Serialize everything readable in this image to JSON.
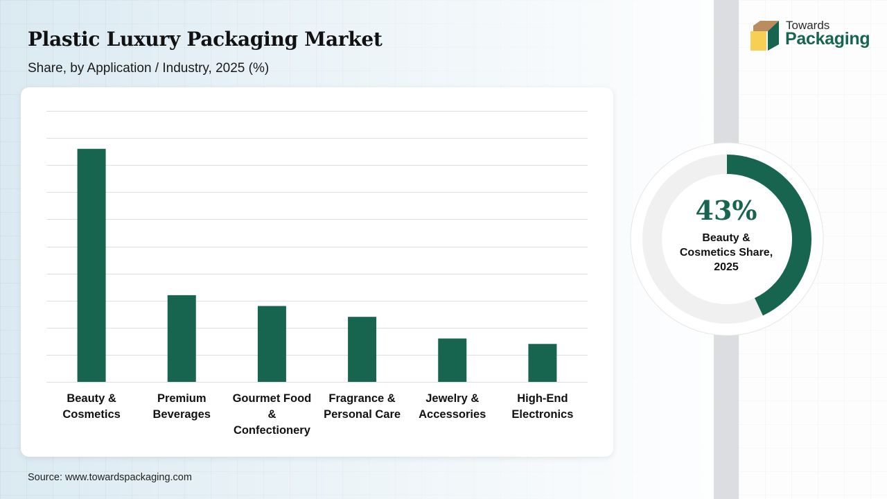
{
  "header": {
    "title": "Plastic Luxury Packaging Market",
    "subtitle": "Share, by Application / Industry, 2025 (%)"
  },
  "logo": {
    "line1": "Towards",
    "line2": "Packaging",
    "colors": {
      "top": "#b98d5f",
      "front": "#f7cf55",
      "side": "#17654f"
    }
  },
  "colors": {
    "bar": "#17654f",
    "donut_track": "#f0f0f0",
    "grid": "#dedede"
  },
  "chart_data": {
    "type": "bar",
    "title": "Plastic Luxury Packaging Market",
    "subtitle": "Share, by Application / Industry, 2025 (%)",
    "xlabel": "",
    "ylabel": "",
    "categories": [
      "Beauty & Cosmetics",
      "Premium Beverages",
      "Gourmet Food & Confectionery",
      "Fragrance & Personal Care",
      "Jewelry & Accessories",
      "High-End Electronics"
    ],
    "category_lines": [
      [
        "Beauty &",
        "Cosmetics"
      ],
      [
        "Premium",
        "Beverages"
      ],
      [
        "Gourmet Food",
        "&",
        "Confectionery"
      ],
      [
        "Fragrance &",
        "Personal Care"
      ],
      [
        "Jewelry &",
        "Accessories"
      ],
      [
        "High-End",
        "Electronics"
      ]
    ],
    "values": [
      43,
      16,
      14,
      12,
      8,
      7
    ],
    "ylim": [
      0,
      50
    ],
    "grid_step": 5,
    "grid": true,
    "y_tick_labels_shown": false
  },
  "kpi": {
    "value": 43,
    "value_label": "43%",
    "label_lines": [
      "Beauty &",
      "Cosmetics Share,",
      "2025"
    ]
  },
  "footer": {
    "source": "Source: www.towardspackaging.com"
  }
}
